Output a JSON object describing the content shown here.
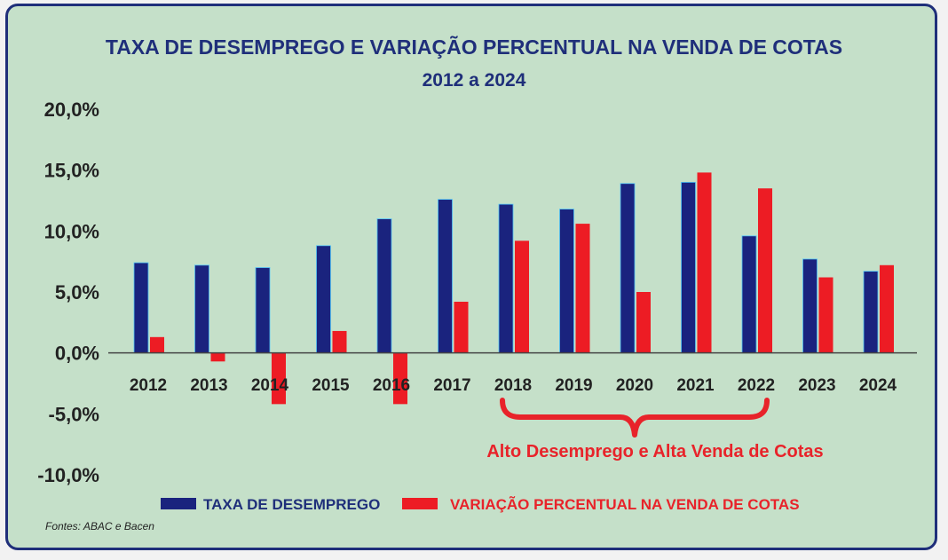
{
  "chart_data": {
    "type": "bar",
    "title": "TAXA DE DESEMPREGO E VARIAÇÃO PERCENTUAL NA VENDA DE COTAS",
    "subtitle": "2012 a 2024",
    "categories": [
      "2012",
      "2013",
      "2014",
      "2015",
      "2016",
      "2017",
      "2018",
      "2019",
      "2020",
      "2021",
      "2022",
      "2023",
      "2024"
    ],
    "series": [
      {
        "name": "TAXA DE DESEMPREGO",
        "color": "#1a237e",
        "values": [
          7.4,
          7.2,
          7.0,
          8.8,
          11.0,
          12.6,
          12.2,
          11.8,
          13.9,
          14.0,
          9.6,
          7.7,
          6.7
        ]
      },
      {
        "name": "VARIAÇÃO PERCENTUAL NA VENDA DE COTAS",
        "color": "#ed1c24",
        "values": [
          1.3,
          -0.7,
          -4.2,
          1.8,
          -4.2,
          4.2,
          9.2,
          10.6,
          5.0,
          14.8,
          13.5,
          6.2,
          7.2
        ]
      }
    ],
    "yticks": [
      "20,0%",
      "15,0%",
      "10,0%",
      "5,0%",
      "0,0%",
      "-5,0%",
      "-10,0%"
    ],
    "ylim": [
      -10,
      20
    ],
    "legend_position": "bottom",
    "annotation": {
      "text": "Alto Desemprego e Alta Venda de Cotas",
      "from": "2018",
      "to": "2022"
    },
    "source": "Fontes: ABAC e Bacen"
  }
}
